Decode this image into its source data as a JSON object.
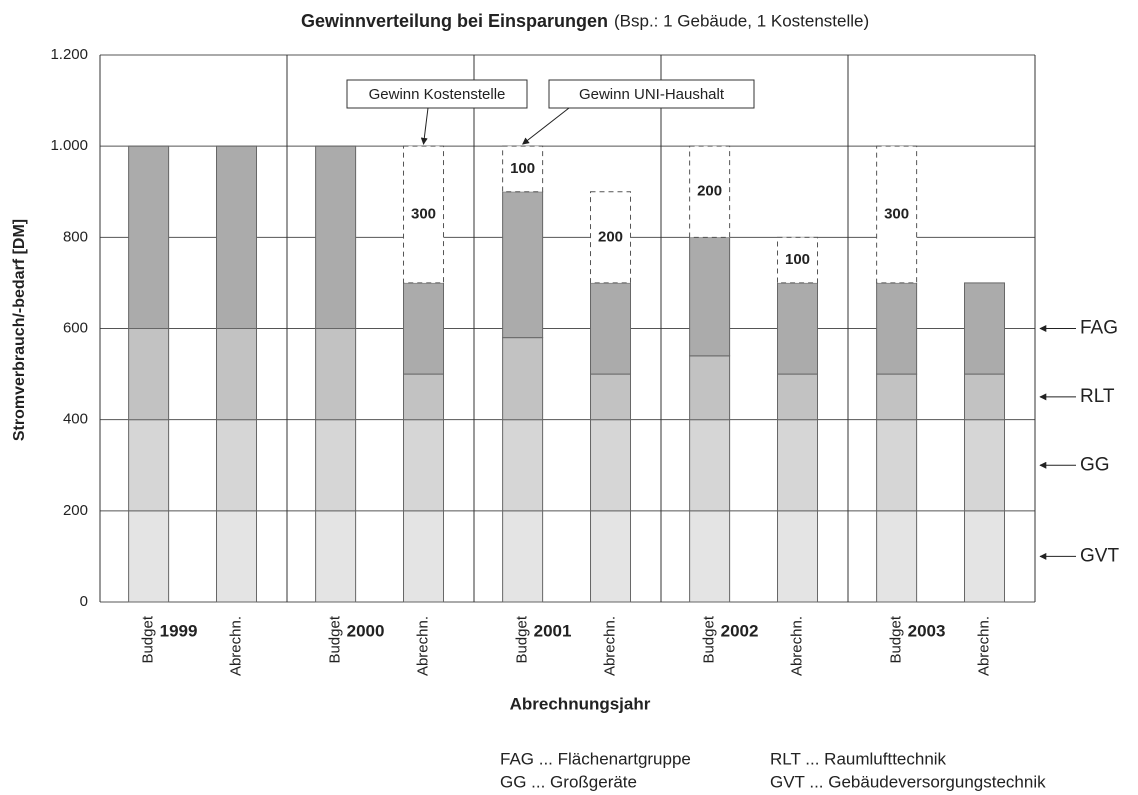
{
  "chart_data": {
    "type": "stacked_bar",
    "title": "Gewinnverteilung bei Einsparungen",
    "subtitle": "(Bsp.: 1 Gebäude, 1 Kostenstelle)",
    "y_label": "Stromverbrauch/-bedarf [DM]",
    "x_label": "Abrechnungsjahr",
    "categories": [
      "Budget",
      "Abrechn.",
      "Budget",
      "Abrechn.",
      "Budget",
      "Abrechn.",
      "Budget",
      "Abrechn.",
      "Budget",
      "Abrechn."
    ],
    "groups": [
      "1999",
      "2000",
      "2001",
      "2002",
      "2003"
    ],
    "series": [
      {
        "name": "GVT",
        "color": "#e4e4e4",
        "values": [
          200,
          200,
          200,
          200,
          200,
          200,
          200,
          200,
          200,
          200
        ]
      },
      {
        "name": "GG",
        "color": "#d6d6d6",
        "values": [
          200,
          200,
          200,
          200,
          200,
          200,
          200,
          200,
          200,
          200
        ]
      },
      {
        "name": "RLT",
        "color": "#c2c2c2",
        "values": [
          200,
          200,
          200,
          100,
          180,
          100,
          140,
          100,
          100,
          100
        ]
      },
      {
        "name": "FAG",
        "color": "#ababab",
        "values": [
          400,
          400,
          400,
          200,
          320,
          200,
          260,
          200,
          200,
          200
        ]
      }
    ],
    "gains": [
      null,
      null,
      null,
      300,
      100,
      200,
      200,
      100,
      300,
      null
    ],
    "annotations": [
      "Gewinn Kostenstelle",
      "Gewinn UNI-Haushalt"
    ],
    "legend_notes": [
      "FAG ... Flächenartgruppe",
      "GG ... Großgeräte",
      "RLT ... Raumlufttechnik",
      "GVT ... Gebäudeversorgungstechnik"
    ],
    "ylim": [
      0,
      1200
    ],
    "yticks": [
      0,
      200,
      400,
      600,
      800,
      {
        "value": 1000,
        "label": "1.000"
      },
      {
        "value": 1200,
        "label": "1.200"
      }
    ],
    "grid": true
  }
}
